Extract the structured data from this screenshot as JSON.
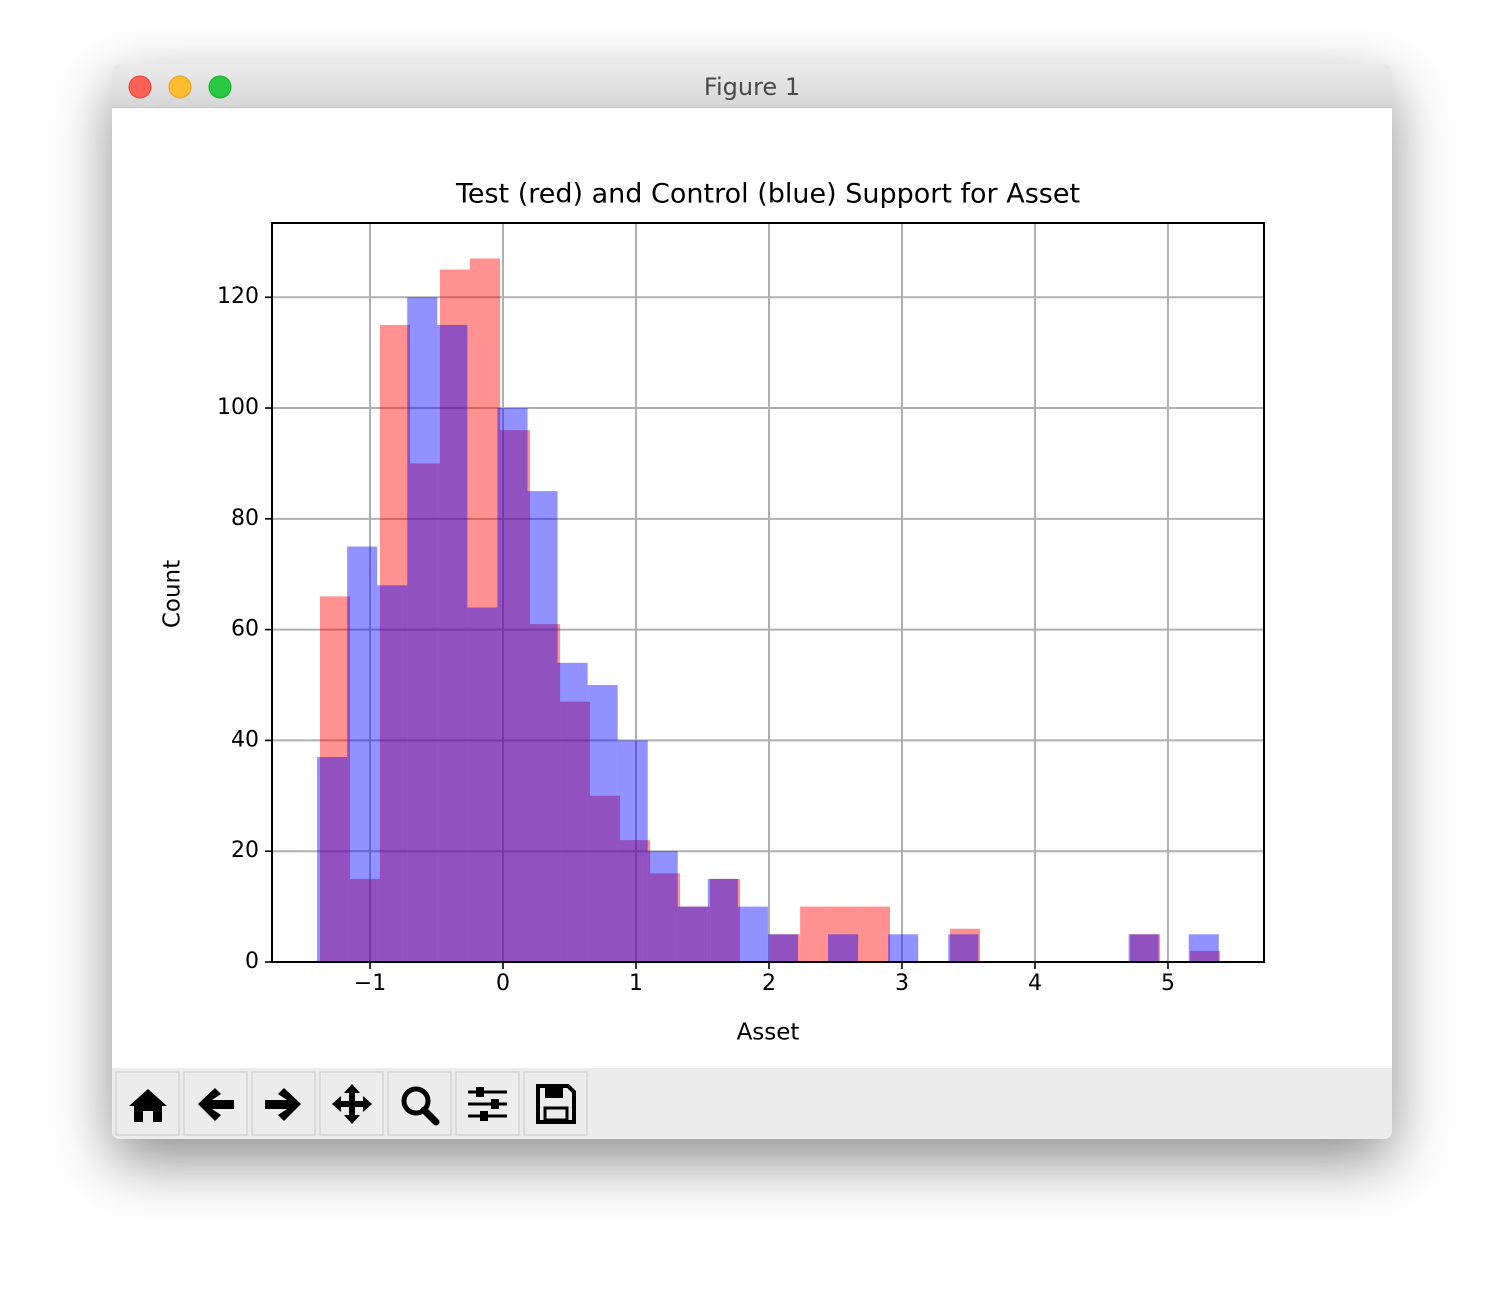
{
  "window": {
    "title": "Figure 1"
  },
  "chart_data": {
    "type": "histogram",
    "title": "Test (red) and Control (blue) Support for Asset",
    "xlabel": "Asset",
    "ylabel": "Count",
    "xlim": [
      -1.737,
      5.722
    ],
    "ylim": [
      0,
      133.4
    ],
    "xticks": [
      {
        "value": -1,
        "label": "−1"
      },
      0,
      1,
      2,
      3,
      4,
      5
    ],
    "yticks": [
      0,
      20,
      40,
      60,
      80,
      100,
      120
    ],
    "grid": true,
    "alpha": 0.43,
    "series": [
      {
        "color": "#ff0000",
        "bins": [
          -1.376,
          -1.15,
          -0.925,
          -0.699,
          -0.474,
          -0.248,
          -0.022,
          0.203,
          0.429,
          0.654,
          0.88,
          1.106,
          1.331,
          1.557,
          1.782,
          2.008,
          2.234,
          2.459,
          2.685,
          2.91,
          3.136,
          3.362,
          3.587,
          3.813,
          4.038,
          4.264,
          4.49,
          4.715,
          4.941,
          5.166,
          5.392
        ],
        "values": [
          66,
          15,
          115,
          90,
          125,
          127,
          96,
          61,
          47,
          30,
          22,
          16,
          10,
          15,
          0,
          5,
          10,
          10,
          10,
          0,
          0,
          6,
          0,
          0,
          0,
          0,
          0,
          5,
          0,
          2
        ]
      },
      {
        "color": "#0000ff",
        "bins": [
          -1.398,
          -1.172,
          -0.946,
          -0.72,
          -0.494,
          -0.268,
          -0.042,
          0.184,
          0.41,
          0.636,
          0.862,
          1.088,
          1.314,
          1.54,
          1.766,
          1.992,
          2.218,
          2.444,
          2.67,
          2.896,
          3.122,
          3.348,
          3.574,
          3.8,
          4.026,
          4.252,
          4.478,
          4.704,
          4.93,
          5.156,
          5.382
        ],
        "values": [
          37,
          75,
          68,
          120,
          115,
          64,
          100,
          85,
          54,
          50,
          40,
          20,
          10,
          15,
          10,
          5,
          0,
          5,
          0,
          5,
          0,
          5,
          0,
          0,
          0,
          0,
          0,
          5,
          0,
          5
        ]
      }
    ]
  }
}
